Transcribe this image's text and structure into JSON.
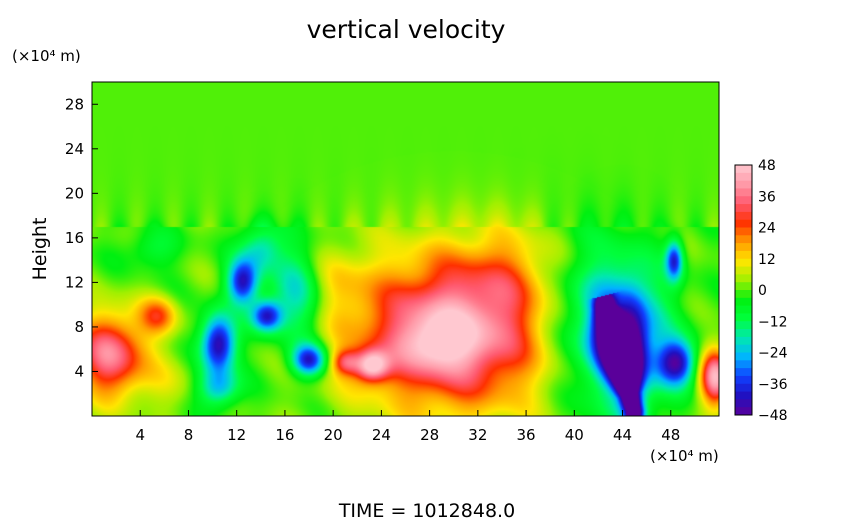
{
  "chart_data": {
    "type": "heatmap",
    "title": "vertical velocity",
    "ylabel": "Height",
    "x_unit_label": "(×10⁴ m)",
    "y_unit_label": "(×10⁴ m)",
    "footer": "TIME  =  1012848.0",
    "xlim": [
      0,
      52
    ],
    "ylim": [
      0,
      30
    ],
    "x_ticks": [
      4,
      8,
      12,
      16,
      20,
      24,
      28,
      32,
      36,
      40,
      44,
      48
    ],
    "y_ticks": [
      4,
      8,
      12,
      16,
      20,
      24,
      28
    ],
    "colorbar": {
      "ticks": [
        48,
        36,
        24,
        12,
        0,
        -12,
        -24,
        -36,
        -48
      ],
      "range": [
        -48,
        48
      ],
      "colors": [
        "#5a009a",
        "#2010c0",
        "#1040ff",
        "#00b4ff",
        "#00e8b0",
        "#00ff3c",
        "#00f010",
        "#a0f000",
        "#ffe600",
        "#ff9a00",
        "#ff3000",
        "#ff5a70",
        "#ff9aa8",
        "#ffc8d0"
      ]
    },
    "background_value": 0,
    "features": [
      {
        "x": 1.5,
        "y": 5.5,
        "sx": 2.0,
        "sy": 2.6,
        "value": 38
      },
      {
        "x": 5.5,
        "y": 9.0,
        "sx": 1.1,
        "sy": 1.2,
        "value": 22
      },
      {
        "x": 30.0,
        "y": 7.5,
        "sx": 5.6,
        "sy": 4.7,
        "value": 46
      },
      {
        "x": 28.5,
        "y": 6.5,
        "sx": 2.0,
        "sy": 1.6,
        "value": 14
      },
      {
        "x": 23.2,
        "y": 4.5,
        "sx": 1.0,
        "sy": 1.0,
        "value": 38
      },
      {
        "x": 21.0,
        "y": 4.8,
        "sx": 0.8,
        "sy": 0.8,
        "value": 22
      },
      {
        "x": 10.5,
        "y": 6.5,
        "sx": 1.0,
        "sy": 1.8,
        "value": -46
      },
      {
        "x": 12.5,
        "y": 12.0,
        "sx": 0.9,
        "sy": 1.4,
        "value": -40
      },
      {
        "x": 14.5,
        "y": 9.0,
        "sx": 0.9,
        "sy": 1.0,
        "value": -38
      },
      {
        "x": 18.0,
        "y": 5.0,
        "sx": 1.0,
        "sy": 1.0,
        "value": -40
      },
      {
        "x": 10.5,
        "y": 2.5,
        "sx": 1.2,
        "sy": 1.2,
        "value": -24
      },
      {
        "x": 14.0,
        "y": 15.0,
        "sx": 1.2,
        "sy": 1.5,
        "value": -20
      },
      {
        "x": 17.0,
        "y": 11.0,
        "sx": 1.6,
        "sy": 3.0,
        "value": -22
      },
      {
        "x": 44.0,
        "y": 7.0,
        "sx": 2.6,
        "sy": 4.5,
        "value": -34
      },
      {
        "x": 44.8,
        "y": 5.5,
        "sx": 0.9,
        "sy": 3.5,
        "value": -22
      },
      {
        "x": 48.5,
        "y": 4.8,
        "sx": 1.1,
        "sy": 1.4,
        "value": -40
      },
      {
        "x": 48.3,
        "y": 14.0,
        "sx": 0.5,
        "sy": 1.3,
        "value": -36
      },
      {
        "x": 40.0,
        "y": 10.0,
        "sx": 3.0,
        "sy": 4.5,
        "value": -12
      },
      {
        "x": 5.0,
        "y": 15.0,
        "sx": 1.5,
        "sy": 1.2,
        "value": -10
      },
      {
        "x": 51.7,
        "y": 3.5,
        "sx": 0.9,
        "sy": 1.8,
        "value": 44
      },
      {
        "x": 35.0,
        "y": 13.0,
        "sx": 3.0,
        "sy": 3.0,
        "value": 10
      },
      {
        "x": 20.0,
        "y": 12.0,
        "sx": 2.0,
        "sy": 2.5,
        "value": 8
      },
      {
        "x": 6.0,
        "y": 3.0,
        "sx": 2.0,
        "sy": 2.0,
        "value": 6
      }
    ],
    "purple_streak": {
      "x0": 42.5,
      "y0": 9.8,
      "x1": 45.0,
      "y1": 0.3,
      "value": -48
    }
  }
}
